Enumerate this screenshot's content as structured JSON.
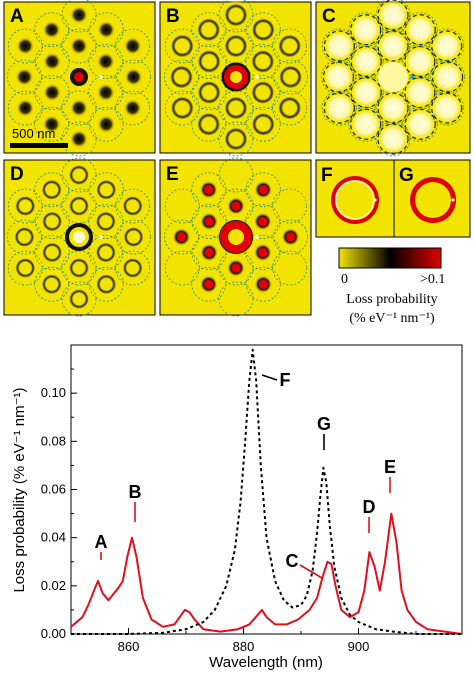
{
  "panels": [
    "A",
    "B",
    "C",
    "D",
    "E",
    "F",
    "G"
  ],
  "scale_bar": "500 nm",
  "colorbar": {
    "min_label": "0",
    "max_label": ">0.1",
    "title": "Loss probability",
    "units": "(% eV⁻¹ nm⁻¹)",
    "colors": [
      "#f3e400",
      "#000000",
      "#e00000"
    ]
  },
  "colors": {
    "solid_series": "#e0101a",
    "dashed_series": "#000000",
    "panel_yellow": "#f3e400"
  },
  "chart_data": {
    "type": "line",
    "xlabel": "Wavelength (nm)",
    "ylabel": "Loss probability (% eV⁻¹ nm⁻¹)",
    "xlim": [
      850,
      918
    ],
    "ylim": [
      0,
      0.12
    ],
    "xticks": [
      "860",
      "880",
      "900"
    ],
    "yticks": [
      "0.00",
      "0.02",
      "0.04",
      "0.06",
      "0.08",
      "0.10"
    ],
    "grid": false,
    "series": [
      {
        "style": "solid",
        "color": "#e0101a",
        "x": [
          850,
          852,
          853,
          854,
          854.7,
          855.5,
          856.5,
          857.5,
          858.2,
          859,
          859.8,
          860.6,
          861.4,
          862.5,
          864,
          866,
          868,
          869.2,
          869.8,
          870.6,
          871.5,
          873,
          876,
          879,
          881,
          882.5,
          883.2,
          884,
          885.5,
          887.5,
          889.5,
          891.5,
          892.8,
          893.8,
          894.6,
          895.3,
          896,
          897,
          898.5,
          900,
          901,
          901.9,
          902.8,
          903.7,
          904.6,
          905.7,
          906.6,
          907.5,
          908.5,
          910,
          912,
          915,
          918
        ],
        "y": [
          0.003,
          0.007,
          0.012,
          0.018,
          0.022,
          0.017,
          0.014,
          0.017,
          0.019,
          0.022,
          0.032,
          0.04,
          0.032,
          0.015,
          0.006,
          0.003,
          0.004,
          0.008,
          0.01,
          0.009,
          0.006,
          0.002,
          0.001,
          0.002,
          0.004,
          0.008,
          0.01,
          0.007,
          0.004,
          0.004,
          0.006,
          0.01,
          0.015,
          0.024,
          0.03,
          0.029,
          0.02,
          0.01,
          0.007,
          0.009,
          0.018,
          0.034,
          0.028,
          0.018,
          0.03,
          0.05,
          0.038,
          0.018,
          0.01,
          0.005,
          0.002,
          0.001,
          0
        ]
      },
      {
        "style": "dashed",
        "color": "#000000",
        "x": [
          850,
          860,
          866,
          870,
          873,
          875,
          877,
          878.5,
          879.5,
          880.3,
          881,
          881.6,
          882.2,
          883,
          884,
          885.5,
          887,
          888.5,
          890,
          891,
          892,
          892.8,
          893.4,
          893.9,
          894.4,
          895,
          895.8,
          897,
          898.5,
          900,
          903,
          906,
          910,
          918
        ],
        "y": [
          0,
          0,
          0.0005,
          0.002,
          0.005,
          0.01,
          0.02,
          0.035,
          0.055,
          0.08,
          0.105,
          0.118,
          0.105,
          0.07,
          0.04,
          0.022,
          0.014,
          0.011,
          0.012,
          0.016,
          0.026,
          0.042,
          0.058,
          0.069,
          0.063,
          0.045,
          0.028,
          0.015,
          0.008,
          0.005,
          0.002,
          0.001,
          0,
          0
        ]
      }
    ],
    "annotations": [
      {
        "text": "A",
        "x": 854.7,
        "color": "#000000",
        "leader": "#e0101a"
      },
      {
        "text": "B",
        "x": 860.6,
        "color": "#000000",
        "leader": "#e0101a"
      },
      {
        "text": "F",
        "x": 881.6,
        "color": "#000000",
        "leader": "#000000"
      },
      {
        "text": "G",
        "x": 893.9,
        "color": "#000000",
        "leader": "#000000"
      },
      {
        "text": "C",
        "x": 894.6,
        "color": "#000000",
        "leader": "#e0101a"
      },
      {
        "text": "D",
        "x": 901.9,
        "color": "#000000",
        "leader": "#e0101a"
      },
      {
        "text": "E",
        "x": 905.7,
        "color": "#000000",
        "leader": "#e0101a"
      }
    ]
  }
}
